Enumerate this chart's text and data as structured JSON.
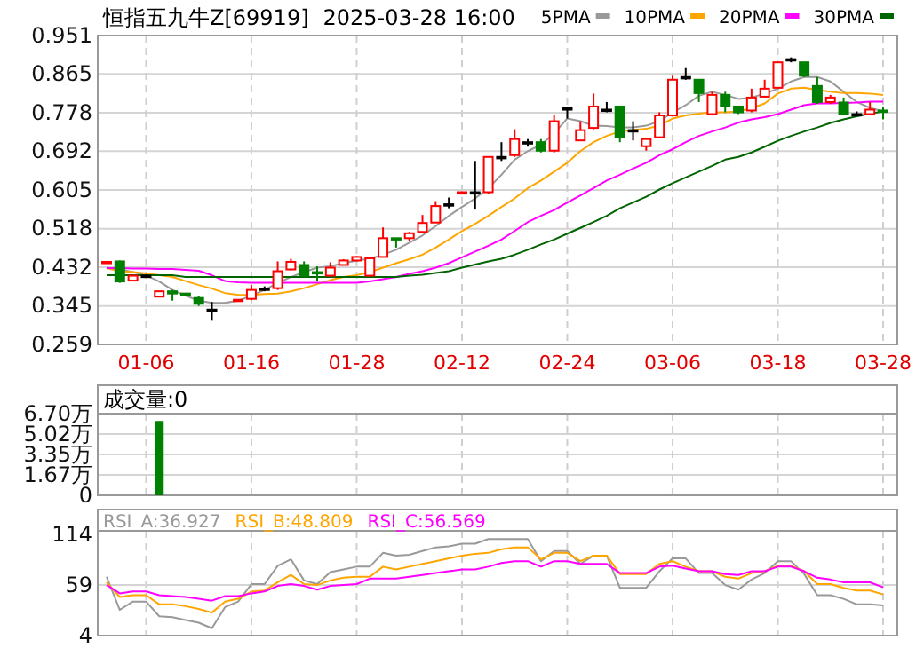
{
  "chart_data": [
    {
      "type": "candlestick",
      "title": "恒指五九牛Z[69919]",
      "subtitle": "2025-03-28 16:00",
      "categories": [
        null,
        null,
        null,
        "01-06",
        null,
        null,
        null,
        null,
        null,
        null,
        null,
        "01-16",
        null,
        null,
        null,
        null,
        null,
        null,
        null,
        "01-28",
        null,
        null,
        null,
        null,
        null,
        null,
        null,
        "02-12",
        null,
        null,
        null,
        null,
        null,
        null,
        null,
        "02-24",
        null,
        null,
        null,
        null,
        null,
        null,
        null,
        "03-06",
        null,
        null,
        null,
        null,
        null,
        null,
        null,
        "03-18",
        null,
        null,
        null,
        null,
        null,
        null,
        null,
        "03-28"
      ],
      "ohlc": [
        [
          0.441,
          0.445,
          0.44,
          0.444
        ],
        [
          0.445,
          0.447,
          0.397,
          0.4
        ],
        [
          0.402,
          0.415,
          0.401,
          0.413
        ],
        [
          0.413,
          0.416,
          0.41,
          0.413
        ],
        [
          0.366,
          0.378,
          0.366,
          0.378
        ],
        [
          0.378,
          0.381,
          0.357,
          0.373
        ],
        [
          0.373,
          0.373,
          0.37,
          0.371
        ],
        [
          0.363,
          0.367,
          0.345,
          0.35
        ],
        [
          0.337,
          0.354,
          0.312,
          0.337
        ],
        null,
        [
          0.357,
          0.36,
          0.356,
          0.359
        ],
        [
          0.361,
          0.392,
          0.358,
          0.381
        ],
        [
          0.384,
          0.389,
          0.378,
          0.384
        ],
        [
          0.385,
          0.445,
          0.381,
          0.423
        ],
        [
          0.427,
          0.451,
          0.425,
          0.444
        ],
        [
          0.437,
          0.445,
          0.41,
          0.413
        ],
        [
          0.421,
          0.434,
          0.4,
          0.42
        ],
        [
          0.413,
          0.443,
          0.41,
          0.431
        ],
        [
          0.437,
          0.45,
          0.436,
          0.447
        ],
        [
          0.447,
          0.457,
          0.445,
          0.455
        ],
        [
          0.413,
          0.455,
          0.41,
          0.452
        ],
        [
          0.455,
          0.521,
          0.455,
          0.497
        ],
        [
          0.497,
          0.498,
          0.476,
          0.496
        ],
        [
          0.497,
          0.511,
          0.49,
          0.508
        ],
        [
          0.511,
          0.549,
          0.511,
          0.531
        ],
        [
          0.532,
          0.58,
          0.532,
          0.569
        ],
        [
          0.573,
          0.588,
          0.564,
          0.573
        ],
        [
          0.599,
          0.601,
          0.599,
          0.6
        ],
        [
          0.6,
          0.67,
          0.561,
          0.6
        ],
        [
          0.6,
          0.679,
          0.597,
          0.679
        ],
        [
          0.679,
          0.712,
          0.67,
          0.679
        ],
        [
          0.683,
          0.741,
          0.679,
          0.719
        ],
        [
          0.712,
          0.719,
          0.702,
          0.712
        ],
        [
          0.712,
          0.719,
          0.689,
          0.693
        ],
        [
          0.693,
          0.772,
          0.689,
          0.759
        ],
        [
          0.788,
          0.792,
          0.765,
          0.788
        ],
        [
          0.716,
          0.759,
          0.716,
          0.739
        ],
        [
          0.744,
          0.821,
          0.741,
          0.792
        ],
        [
          0.785,
          0.802,
          0.779,
          0.785
        ],
        [
          0.792,
          0.792,
          0.712,
          0.723
        ],
        [
          0.739,
          0.759,
          0.716,
          0.739
        ],
        [
          0.703,
          0.719,
          0.693,
          0.719
        ],
        [
          0.723,
          0.779,
          0.723,
          0.772
        ],
        [
          0.772,
          0.861,
          0.772,
          0.852
        ],
        [
          0.858,
          0.878,
          0.852,
          0.858
        ],
        [
          0.852,
          0.852,
          0.802,
          0.822
        ],
        [
          0.775,
          0.825,
          0.775,
          0.818
        ],
        [
          0.818,
          0.825,
          0.779,
          0.792
        ],
        [
          0.792,
          0.792,
          0.775,
          0.779
        ],
        [
          0.783,
          0.832,
          0.779,
          0.812
        ],
        [
          0.814,
          0.852,
          0.812,
          0.832
        ],
        [
          0.834,
          0.891,
          0.832,
          0.891
        ],
        [
          0.898,
          0.902,
          0.891,
          0.898
        ],
        [
          0.891,
          0.891,
          0.858,
          0.861
        ],
        [
          0.838,
          0.858,
          0.798,
          0.802
        ],
        [
          0.802,
          0.818,
          0.798,
          0.812
        ],
        [
          0.801,
          0.812,
          0.772,
          0.775
        ],
        [
          0.775,
          0.781,
          0.772,
          0.775
        ],
        [
          0.775,
          0.802,
          0.775,
          0.785
        ],
        [
          0.783,
          0.792,
          0.763,
          0.781
        ]
      ],
      "series": [
        {
          "name": "5PMA",
          "type": "line",
          "color": "#999999",
          "values": [
            0.431,
            0.427,
            0.421,
            0.414,
            0.4,
            0.381,
            0.368,
            0.357,
            0.352,
            0.352,
            0.357,
            0.368,
            0.381,
            0.397,
            0.41,
            0.421,
            0.431,
            0.434,
            0.441,
            0.447,
            0.451,
            0.46,
            0.471,
            0.487,
            0.503,
            0.524,
            0.547,
            0.567,
            0.586,
            0.609,
            0.639,
            0.673,
            0.692,
            0.706,
            0.732,
            0.765,
            0.759,
            0.749,
            0.748,
            0.745,
            0.745,
            0.749,
            0.759,
            0.779,
            0.795,
            0.816,
            0.825,
            0.818,
            0.809,
            0.812,
            0.821,
            0.832,
            0.848,
            0.858,
            0.858,
            0.848,
            0.825,
            0.802,
            0.789,
            0.781
          ]
        },
        {
          "name": "10PMA",
          "type": "line",
          "color": "#ffa500",
          "values": [
            0.43,
            0.423,
            0.421,
            0.418,
            0.414,
            0.41,
            0.401,
            0.392,
            0.384,
            0.374,
            0.37,
            0.37,
            0.372,
            0.373,
            0.378,
            0.385,
            0.394,
            0.403,
            0.41,
            0.414,
            0.421,
            0.431,
            0.441,
            0.45,
            0.46,
            0.476,
            0.494,
            0.513,
            0.529,
            0.547,
            0.567,
            0.586,
            0.609,
            0.626,
            0.646,
            0.666,
            0.692,
            0.712,
            0.726,
            0.736,
            0.739,
            0.742,
            0.749,
            0.765,
            0.772,
            0.776,
            0.779,
            0.779,
            0.781,
            0.788,
            0.799,
            0.821,
            0.832,
            0.834,
            0.829,
            0.825,
            0.822,
            0.822,
            0.821,
            0.818
          ]
        },
        {
          "name": "20PMA",
          "type": "line",
          "color": "#ff00ff",
          "values": [
            0.43,
            0.43,
            0.429,
            0.429,
            0.428,
            0.428,
            0.426,
            0.424,
            0.414,
            0.401,
            0.398,
            0.397,
            0.397,
            0.397,
            0.397,
            0.397,
            0.397,
            0.397,
            0.397,
            0.397,
            0.4,
            0.405,
            0.41,
            0.417,
            0.423,
            0.431,
            0.441,
            0.454,
            0.467,
            0.48,
            0.494,
            0.513,
            0.533,
            0.547,
            0.56,
            0.577,
            0.593,
            0.609,
            0.626,
            0.639,
            0.653,
            0.666,
            0.683,
            0.696,
            0.712,
            0.726,
            0.736,
            0.745,
            0.756,
            0.763,
            0.768,
            0.775,
            0.785,
            0.795,
            0.799,
            0.799,
            0.8,
            0.801,
            0.803,
            0.803
          ]
        },
        {
          "name": "30PMA",
          "type": "line",
          "color": "#006400",
          "values": [
            0.414,
            0.414,
            0.414,
            0.414,
            0.414,
            0.414,
            0.41,
            0.41,
            0.41,
            0.41,
            0.41,
            0.41,
            0.41,
            0.41,
            0.41,
            0.41,
            0.41,
            0.41,
            0.41,
            0.41,
            0.41,
            0.41,
            0.41,
            0.413,
            0.415,
            0.419,
            0.423,
            0.431,
            0.438,
            0.445,
            0.451,
            0.46,
            0.471,
            0.483,
            0.494,
            0.507,
            0.52,
            0.533,
            0.547,
            0.564,
            0.577,
            0.59,
            0.606,
            0.62,
            0.633,
            0.646,
            0.659,
            0.673,
            0.679,
            0.689,
            0.702,
            0.715,
            0.726,
            0.736,
            0.745,
            0.755,
            0.763,
            0.77,
            0.776,
            0.781
          ]
        }
      ],
      "ylim": [
        0.259,
        0.951
      ],
      "yticks": [
        0.951,
        0.865,
        0.778,
        0.692,
        0.605,
        0.518,
        0.432,
        0.345,
        0.259
      ],
      "grid": true,
      "legend": "top right"
    },
    {
      "type": "bar",
      "title": "成交量:0",
      "categories": [
        null,
        null,
        null,
        null,
        null,
        null,
        null,
        null,
        null,
        null,
        null,
        null,
        null,
        null,
        null,
        null,
        null,
        null,
        null,
        null,
        null,
        null,
        null,
        null,
        null,
        null,
        null,
        null,
        null,
        null,
        null,
        null,
        null,
        null,
        null,
        null,
        null,
        null,
        null,
        null,
        null,
        null,
        null,
        null,
        null,
        null,
        null,
        null,
        null,
        null,
        null,
        null,
        null,
        null,
        null,
        null,
        null,
        null,
        null,
        null
      ],
      "values": [
        0,
        0,
        0,
        0,
        6.1,
        0,
        0,
        0,
        0,
        0,
        0,
        0,
        0,
        0,
        0,
        0,
        0,
        0,
        0,
        0,
        0,
        0,
        0,
        0,
        0,
        0,
        0,
        0,
        0,
        0,
        0,
        0,
        0,
        0,
        0,
        0,
        0,
        0,
        0,
        0,
        0,
        0,
        0,
        0,
        0,
        0,
        0,
        0,
        0,
        0,
        0,
        0,
        0,
        0,
        0,
        0,
        0,
        0,
        0,
        0
      ],
      "color": "#008000",
      "ylim": [
        0,
        6.7
      ],
      "yticks": [
        {
          "value": 6.7,
          "label": "6.70万"
        },
        {
          "value": 5.02,
          "label": "5.02万"
        },
        {
          "value": 3.35,
          "label": "3.35万"
        },
        {
          "value": 1.67,
          "label": "1.67万"
        },
        0
      ],
      "grid": true,
      "tick_labels": "y"
    },
    {
      "type": "line",
      "categories": [
        null,
        null,
        null,
        null,
        null,
        null,
        null,
        null,
        null,
        null,
        null,
        null,
        null,
        null,
        null,
        null,
        null,
        null,
        null,
        null,
        null,
        null,
        null,
        null,
        null,
        null,
        null,
        null,
        null,
        null,
        null,
        null,
        null,
        null,
        null,
        null,
        null,
        null,
        null,
        null,
        null,
        null,
        null,
        null,
        null,
        null,
        null,
        null,
        null,
        null,
        null,
        null,
        null,
        null,
        null,
        null,
        null,
        null,
        null,
        null
      ],
      "series": [
        {
          "name": "RSI_A:36.927",
          "color": "#999999",
          "values": [
            68,
            32,
            41,
            41,
            25,
            24,
            21,
            18,
            12,
            35,
            41,
            60,
            60,
            80,
            87,
            64,
            60,
            73,
            76,
            79,
            79,
            94,
            91,
            92,
            96,
            100,
            101,
            104,
            104,
            109,
            109,
            109,
            109,
            85,
            96,
            96,
            82,
            91,
            91,
            56,
            56,
            56,
            74,
            88,
            88,
            72,
            72,
            59,
            54,
            65,
            72,
            85,
            85,
            71,
            48,
            48,
            44,
            38,
            38,
            36.927
          ]
        },
        {
          "name": "RSI_B:48.809",
          "color": "#ffa500",
          "values": [
            62,
            46,
            48,
            48,
            38,
            38,
            36,
            33,
            29,
            41,
            44,
            52,
            53,
            62,
            70,
            60,
            59,
            64,
            67,
            68,
            68,
            79,
            76,
            79,
            82,
            85,
            88,
            91,
            93,
            94,
            98,
            100,
            100,
            87,
            94,
            94,
            85,
            91,
            91,
            71,
            71,
            71,
            82,
            85,
            79,
            74,
            74,
            68,
            66,
            72,
            74,
            80,
            80,
            74,
            60,
            60,
            56,
            53,
            53,
            48.809
          ]
        },
        {
          "name": "RSI_C:56.569",
          "color": "#ff00ff",
          "values": [
            59,
            50,
            52,
            52,
            48,
            47,
            46,
            44,
            42,
            47,
            47,
            50,
            52,
            58,
            60,
            58,
            54,
            58,
            59,
            60,
            66,
            66,
            66,
            68,
            70,
            72,
            74,
            76,
            76,
            79,
            83,
            85,
            85,
            79,
            85,
            85,
            82,
            82,
            82,
            72,
            72,
            72,
            79,
            80,
            77,
            74,
            74,
            71,
            70,
            74,
            74,
            79,
            79,
            74,
            67,
            65,
            62,
            62,
            62,
            56.569
          ]
        }
      ],
      "ylim": [
        4,
        118
      ],
      "yticks": [
        114,
        59,
        4
      ],
      "grid": "x",
      "ref_lines": [
        {
          "axis": "y",
          "value": 59,
          "color": "#d4d4d4"
        }
      ],
      "tick_labels": "y",
      "legend": "top left"
    }
  ]
}
